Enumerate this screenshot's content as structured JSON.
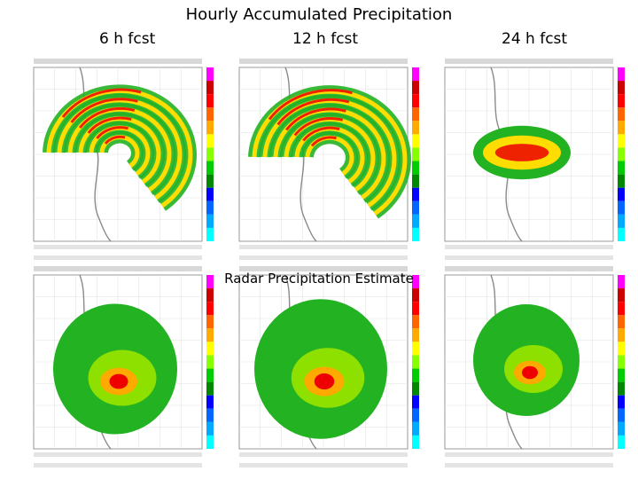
{
  "title": "Hourly Accumulated Precipitation",
  "column_labels": [
    "6 h fcst",
    "12 h fcst",
    "24 h fcst"
  ],
  "overlay_label": "Radar Precipitation Estimate",
  "colorbar_colors": [
    "#ff00ff",
    "#cc0000",
    "#ff0000",
    "#ff6600",
    "#ffaa00",
    "#ffff00",
    "#88ff00",
    "#00cc00",
    "#008800",
    "#0000ff",
    "#0066ff",
    "#00aaff",
    "#00ffff"
  ],
  "colors": {
    "background": "#ffffff",
    "coast": "#888888"
  }
}
